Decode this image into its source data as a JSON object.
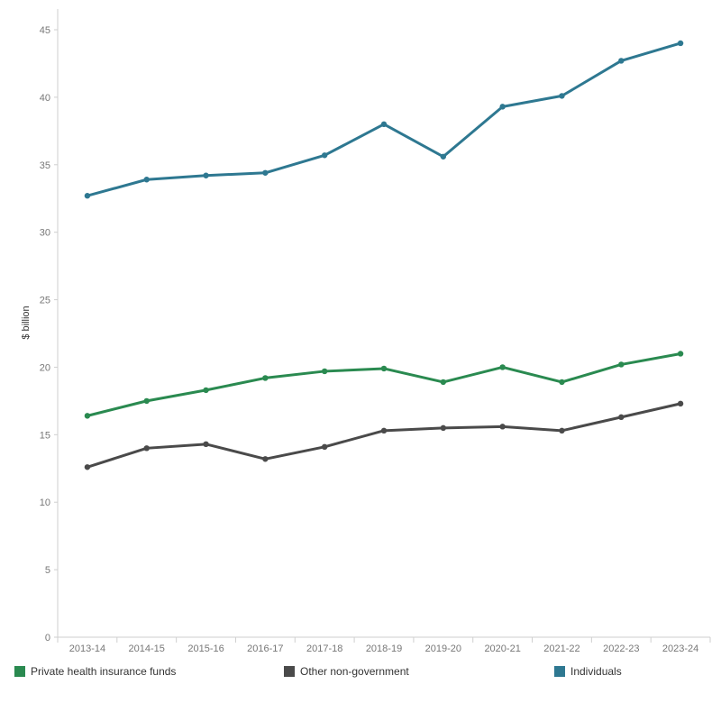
{
  "chart_data": {
    "type": "line",
    "categories": [
      "2013-14",
      "2014-15",
      "2015-16",
      "2016-17",
      "2017-18",
      "2018-19",
      "2019-20",
      "2020-21",
      "2021-22",
      "2022-23",
      "2023-24"
    ],
    "ylabel": "$ billion",
    "ylim": [
      0,
      45
    ],
    "yticks": [
      0,
      5,
      10,
      15,
      20,
      25,
      30,
      35,
      40,
      45
    ],
    "grid": false,
    "legend_position": "bottom",
    "series": [
      {
        "name": "Individuals",
        "color": "#2e7891",
        "values": [
          32.7,
          33.9,
          34.2,
          34.4,
          35.7,
          38.0,
          35.6,
          39.3,
          40.1,
          42.7,
          44.0
        ]
      },
      {
        "name": "Private health insurance funds",
        "color": "#2a8a50",
        "values": [
          16.4,
          17.5,
          18.3,
          19.2,
          19.7,
          19.9,
          18.9,
          20.0,
          18.9,
          20.2,
          21.0
        ]
      },
      {
        "name": "Other non-government",
        "color": "#4a4a4a",
        "values": [
          12.6,
          14.0,
          14.3,
          13.2,
          14.1,
          15.3,
          15.5,
          15.6,
          15.3,
          16.3,
          17.3
        ]
      }
    ]
  },
  "legend": {
    "item1": {
      "label": "Private health insurance funds",
      "color": "#2a8a50"
    },
    "item2": {
      "label": "Other non-government",
      "color": "#4a4a4a"
    },
    "item3": {
      "label": "Individuals",
      "color": "#2e7891"
    }
  }
}
